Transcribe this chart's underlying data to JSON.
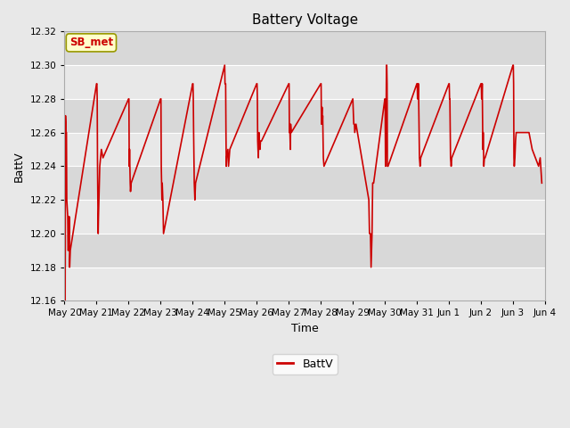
{
  "title": "Battery Voltage",
  "xlabel": "Time",
  "ylabel": "BattV",
  "ylim": [
    12.16,
    12.32
  ],
  "yticks": [
    12.16,
    12.18,
    12.2,
    12.22,
    12.24,
    12.26,
    12.28,
    12.3,
    12.32
  ],
  "line_color": "#cc0000",
  "line_width": 1.2,
  "bg_color": "#e8e8e8",
  "plot_bg_color": "#e0e0e0",
  "band_color_light": "#e8e8e8",
  "band_color_dark": "#d8d8d8",
  "legend_label": "BattV",
  "annotation_text": "SB_met",
  "annotation_bg": "#ffffcc",
  "annotation_border": "#999900",
  "annotation_text_color": "#cc0000",
  "grid_color": "#ffffff",
  "data_points": [
    [
      0.0,
      12.21
    ],
    [
      0.01,
      12.19
    ],
    [
      0.02,
      12.16
    ],
    [
      0.03,
      12.27
    ],
    [
      0.05,
      12.26
    ],
    [
      0.06,
      12.26
    ],
    [
      0.07,
      12.22
    ],
    [
      0.1,
      12.21
    ],
    [
      0.11,
      12.19
    ],
    [
      0.12,
      12.19
    ],
    [
      0.13,
      12.21
    ],
    [
      0.14,
      12.2
    ],
    [
      0.15,
      12.21
    ],
    [
      0.16,
      12.18
    ],
    [
      0.18,
      12.19
    ],
    [
      1.0,
      12.289
    ],
    [
      1.01,
      12.289
    ],
    [
      1.02,
      12.28
    ],
    [
      1.03,
      12.24
    ],
    [
      1.05,
      12.2
    ],
    [
      1.06,
      12.21
    ],
    [
      1.1,
      12.24
    ],
    [
      1.15,
      12.25
    ],
    [
      1.2,
      12.245
    ],
    [
      2.0,
      12.28
    ],
    [
      2.01,
      12.28
    ],
    [
      2.02,
      12.24
    ],
    [
      2.03,
      12.25
    ],
    [
      2.05,
      12.23
    ],
    [
      2.06,
      12.225
    ],
    [
      2.08,
      12.23
    ],
    [
      3.0,
      12.28
    ],
    [
      3.01,
      12.28
    ],
    [
      3.02,
      12.24
    ],
    [
      3.04,
      12.22
    ],
    [
      3.05,
      12.23
    ],
    [
      3.07,
      12.22
    ],
    [
      3.09,
      12.2
    ],
    [
      4.0,
      12.289
    ],
    [
      4.01,
      12.289
    ],
    [
      4.02,
      12.28
    ],
    [
      4.03,
      12.26
    ],
    [
      4.05,
      12.23
    ],
    [
      4.07,
      12.22
    ],
    [
      4.09,
      12.23
    ],
    [
      5.0,
      12.3
    ],
    [
      5.01,
      12.289
    ],
    [
      5.02,
      12.289
    ],
    [
      5.03,
      12.289
    ],
    [
      5.04,
      12.26
    ],
    [
      5.05,
      12.24
    ],
    [
      5.06,
      12.245
    ],
    [
      5.1,
      12.25
    ],
    [
      5.12,
      12.24
    ],
    [
      5.14,
      12.245
    ],
    [
      5.16,
      12.25
    ],
    [
      6.0,
      12.289
    ],
    [
      6.01,
      12.289
    ],
    [
      6.02,
      12.28
    ],
    [
      6.03,
      12.255
    ],
    [
      6.04,
      12.25
    ],
    [
      6.05,
      12.245
    ],
    [
      6.07,
      12.26
    ],
    [
      6.08,
      12.255
    ],
    [
      6.09,
      12.255
    ],
    [
      6.1,
      12.25
    ],
    [
      6.12,
      12.255
    ],
    [
      6.15,
      12.255
    ],
    [
      7.0,
      12.289
    ],
    [
      7.01,
      12.289
    ],
    [
      7.02,
      12.26
    ],
    [
      7.03,
      12.265
    ],
    [
      7.05,
      12.25
    ],
    [
      7.06,
      12.265
    ],
    [
      7.08,
      12.26
    ],
    [
      8.0,
      12.289
    ],
    [
      8.01,
      12.289
    ],
    [
      8.02,
      12.265
    ],
    [
      8.03,
      12.27
    ],
    [
      8.04,
      12.275
    ],
    [
      8.05,
      12.265
    ],
    [
      8.06,
      12.27
    ],
    [
      8.08,
      12.245
    ],
    [
      8.1,
      12.24
    ],
    [
      9.0,
      12.28
    ],
    [
      9.02,
      12.27
    ],
    [
      9.03,
      12.265
    ],
    [
      9.05,
      12.265
    ],
    [
      9.06,
      12.26
    ],
    [
      9.1,
      12.265
    ],
    [
      9.5,
      12.22
    ],
    [
      9.52,
      12.2
    ],
    [
      9.55,
      12.2
    ],
    [
      9.57,
      12.18
    ],
    [
      9.6,
      12.2
    ],
    [
      9.62,
      12.23
    ],
    [
      9.65,
      12.23
    ],
    [
      10.0,
      12.28
    ],
    [
      10.01,
      12.275
    ],
    [
      10.02,
      12.24
    ],
    [
      10.03,
      12.245
    ],
    [
      10.05,
      12.3
    ],
    [
      10.06,
      12.3
    ],
    [
      10.07,
      12.289
    ],
    [
      10.08,
      12.24
    ],
    [
      10.1,
      12.24
    ],
    [
      11.0,
      12.289
    ],
    [
      11.01,
      12.289
    ],
    [
      11.02,
      12.28
    ],
    [
      11.03,
      12.28
    ],
    [
      11.04,
      12.289
    ],
    [
      11.05,
      12.289
    ],
    [
      11.08,
      12.245
    ],
    [
      11.1,
      12.24
    ],
    [
      11.12,
      12.245
    ],
    [
      12.0,
      12.289
    ],
    [
      12.01,
      12.289
    ],
    [
      12.02,
      12.28
    ],
    [
      12.03,
      12.28
    ],
    [
      12.05,
      12.245
    ],
    [
      12.07,
      12.24
    ],
    [
      12.09,
      12.245
    ],
    [
      13.0,
      12.289
    ],
    [
      13.01,
      12.289
    ],
    [
      13.02,
      12.28
    ],
    [
      13.03,
      12.28
    ],
    [
      13.04,
      12.289
    ],
    [
      13.06,
      12.25
    ],
    [
      13.07,
      12.26
    ],
    [
      13.09,
      12.24
    ],
    [
      13.11,
      12.245
    ],
    [
      13.13,
      12.245
    ],
    [
      14.0,
      12.3
    ],
    [
      14.01,
      12.3
    ],
    [
      14.02,
      12.289
    ],
    [
      14.03,
      12.245
    ],
    [
      14.04,
      12.24
    ],
    [
      14.06,
      12.245
    ],
    [
      14.08,
      12.255
    ],
    [
      14.1,
      12.26
    ],
    [
      14.5,
      12.26
    ],
    [
      14.6,
      12.25
    ],
    [
      14.7,
      12.245
    ],
    [
      14.8,
      12.24
    ],
    [
      14.85,
      12.245
    ],
    [
      14.9,
      12.23
    ]
  ]
}
